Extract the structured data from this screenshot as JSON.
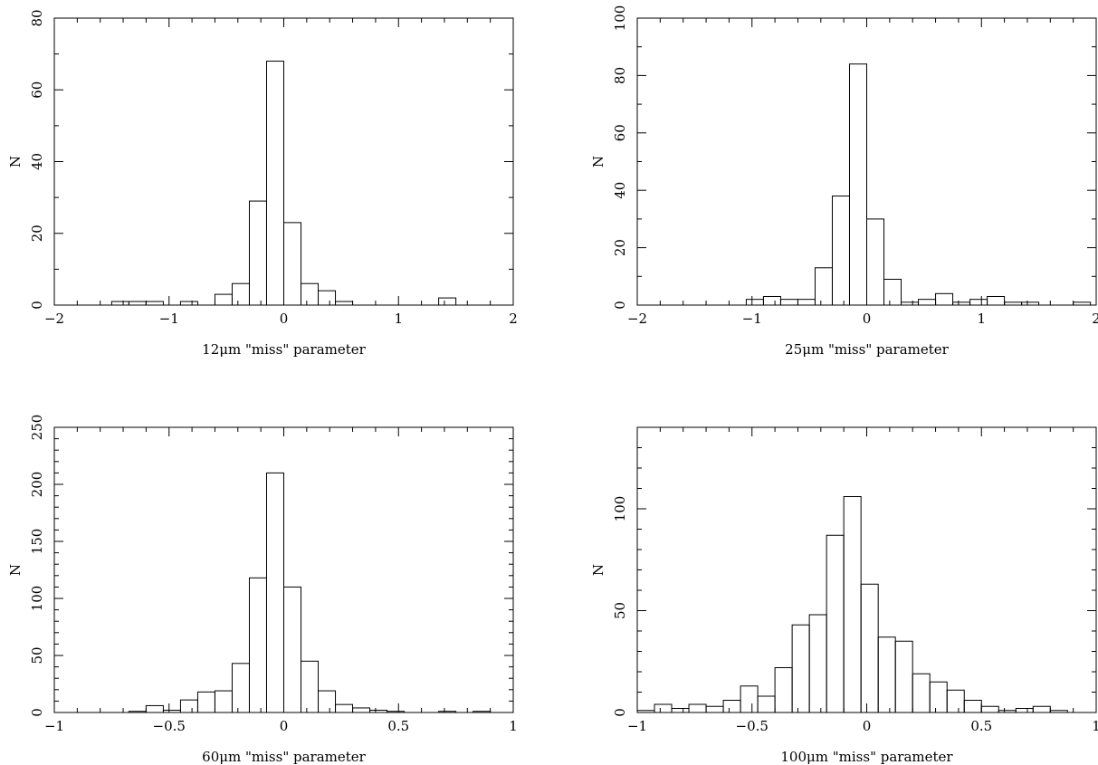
{
  "chart_data": [
    {
      "type": "bar",
      "xlabel": "12μm \"miss\" parameter",
      "ylabel": "N",
      "xlim": [
        -2,
        2
      ],
      "ylim": [
        0,
        80
      ],
      "xticks": [
        -2,
        -1,
        0,
        1,
        2
      ],
      "xtick_labels": [
        "−2",
        "−1",
        "0",
        "1",
        "2"
      ],
      "yticks": [
        0,
        20,
        40,
        60,
        80
      ],
      "ytick_labels": [
        "0",
        "20",
        "40",
        "60",
        "80"
      ],
      "xminor": 0.2,
      "yminor": 10,
      "bin_width": 0.15,
      "bins": [
        {
          "x0": -1.5,
          "value": 1
        },
        {
          "x0": -1.35,
          "value": 1
        },
        {
          "x0": -1.2,
          "value": 1
        },
        {
          "x0": -0.9,
          "value": 1
        },
        {
          "x0": -0.6,
          "value": 3
        },
        {
          "x0": -0.45,
          "value": 6
        },
        {
          "x0": -0.3,
          "value": 29
        },
        {
          "x0": -0.15,
          "value": 68
        },
        {
          "x0": 0.0,
          "value": 23
        },
        {
          "x0": 0.15,
          "value": 6
        },
        {
          "x0": 0.3,
          "value": 4
        },
        {
          "x0": 0.45,
          "value": 1
        },
        {
          "x0": 1.35,
          "value": 2
        }
      ]
    },
    {
      "type": "bar",
      "xlabel": "25μm \"miss\" parameter",
      "ylabel": "N",
      "xlim": [
        -2,
        2
      ],
      "ylim": [
        0,
        100
      ],
      "xticks": [
        -2,
        -1,
        0,
        1,
        2
      ],
      "xtick_labels": [
        "−2",
        "−1",
        "0",
        "1",
        "2"
      ],
      "yticks": [
        0,
        20,
        40,
        60,
        80,
        100
      ],
      "ytick_labels": [
        "0",
        "20",
        "40",
        "60",
        "80",
        "100"
      ],
      "xminor": 0.2,
      "yminor": 10,
      "bin_width": 0.15,
      "bins": [
        {
          "x0": -1.05,
          "value": 2
        },
        {
          "x0": -0.9,
          "value": 3
        },
        {
          "x0": -0.75,
          "value": 2
        },
        {
          "x0": -0.6,
          "value": 2
        },
        {
          "x0": -0.45,
          "value": 13
        },
        {
          "x0": -0.3,
          "value": 38
        },
        {
          "x0": -0.15,
          "value": 84
        },
        {
          "x0": 0.0,
          "value": 30
        },
        {
          "x0": 0.15,
          "value": 9
        },
        {
          "x0": 0.3,
          "value": 1
        },
        {
          "x0": 0.45,
          "value": 2
        },
        {
          "x0": 0.6,
          "value": 4
        },
        {
          "x0": 0.75,
          "value": 1
        },
        {
          "x0": 0.9,
          "value": 2
        },
        {
          "x0": 1.05,
          "value": 3
        },
        {
          "x0": 1.2,
          "value": 1
        },
        {
          "x0": 1.35,
          "value": 1
        },
        {
          "x0": 1.8,
          "value": 1
        }
      ]
    },
    {
      "type": "bar",
      "xlabel": "60μm \"miss\" parameter",
      "ylabel": "N",
      "xlim": [
        -1,
        1
      ],
      "ylim": [
        0,
        250
      ],
      "xticks": [
        -1,
        -0.5,
        0,
        0.5,
        1
      ],
      "xtick_labels": [
        "−1",
        "−0.5",
        "0",
        "0.5",
        "1"
      ],
      "yticks": [
        0,
        50,
        100,
        150,
        200,
        250
      ],
      "ytick_labels": [
        "0",
        "50",
        "100",
        "150",
        "200",
        "250"
      ],
      "xminor": 0.1,
      "yminor": 10,
      "bin_width": 0.075,
      "bins": [
        {
          "x0": -0.675,
          "value": 1
        },
        {
          "x0": -0.6,
          "value": 6
        },
        {
          "x0": -0.525,
          "value": 2
        },
        {
          "x0": -0.45,
          "value": 11
        },
        {
          "x0": -0.375,
          "value": 18
        },
        {
          "x0": -0.3,
          "value": 19
        },
        {
          "x0": -0.225,
          "value": 43
        },
        {
          "x0": -0.15,
          "value": 118
        },
        {
          "x0": -0.075,
          "value": 210
        },
        {
          "x0": 0.0,
          "value": 110
        },
        {
          "x0": 0.075,
          "value": 45
        },
        {
          "x0": 0.15,
          "value": 19
        },
        {
          "x0": 0.225,
          "value": 7
        },
        {
          "x0": 0.3,
          "value": 4
        },
        {
          "x0": 0.375,
          "value": 2
        },
        {
          "x0": 0.45,
          "value": 1
        },
        {
          "x0": 0.675,
          "value": 1
        },
        {
          "x0": 0.825,
          "value": 1
        }
      ]
    },
    {
      "type": "bar",
      "xlabel": "100μm \"miss\" parameter",
      "ylabel": "N",
      "xlim": [
        -1,
        1
      ],
      "ylim": [
        0,
        140
      ],
      "xticks": [
        -1,
        -0.5,
        0,
        0.5,
        1
      ],
      "xtick_labels": [
        "−1",
        "−0.5",
        "0",
        "0.5",
        "1"
      ],
      "yticks": [
        0,
        50,
        100
      ],
      "ytick_labels": [
        "0",
        "50",
        "100"
      ],
      "xminor": 0.1,
      "yminor": 10,
      "bin_width": 0.075,
      "bins": [
        {
          "x0": -1.0,
          "value": 1
        },
        {
          "x0": -0.925,
          "value": 4
        },
        {
          "x0": -0.85,
          "value": 2
        },
        {
          "x0": -0.775,
          "value": 4
        },
        {
          "x0": -0.7,
          "value": 3
        },
        {
          "x0": -0.625,
          "value": 6
        },
        {
          "x0": -0.55,
          "value": 13
        },
        {
          "x0": -0.475,
          "value": 8
        },
        {
          "x0": -0.4,
          "value": 22
        },
        {
          "x0": -0.325,
          "value": 43
        },
        {
          "x0": -0.25,
          "value": 48
        },
        {
          "x0": -0.175,
          "value": 87
        },
        {
          "x0": -0.1,
          "value": 106
        },
        {
          "x0": -0.025,
          "value": 63
        },
        {
          "x0": 0.05,
          "value": 37
        },
        {
          "x0": 0.125,
          "value": 35
        },
        {
          "x0": 0.2,
          "value": 19
        },
        {
          "x0": 0.275,
          "value": 15
        },
        {
          "x0": 0.35,
          "value": 11
        },
        {
          "x0": 0.425,
          "value": 6
        },
        {
          "x0": 0.5,
          "value": 3
        },
        {
          "x0": 0.575,
          "value": 1
        },
        {
          "x0": 0.65,
          "value": 2
        },
        {
          "x0": 0.725,
          "value": 3
        },
        {
          "x0": 0.8,
          "value": 1
        }
      ]
    }
  ]
}
